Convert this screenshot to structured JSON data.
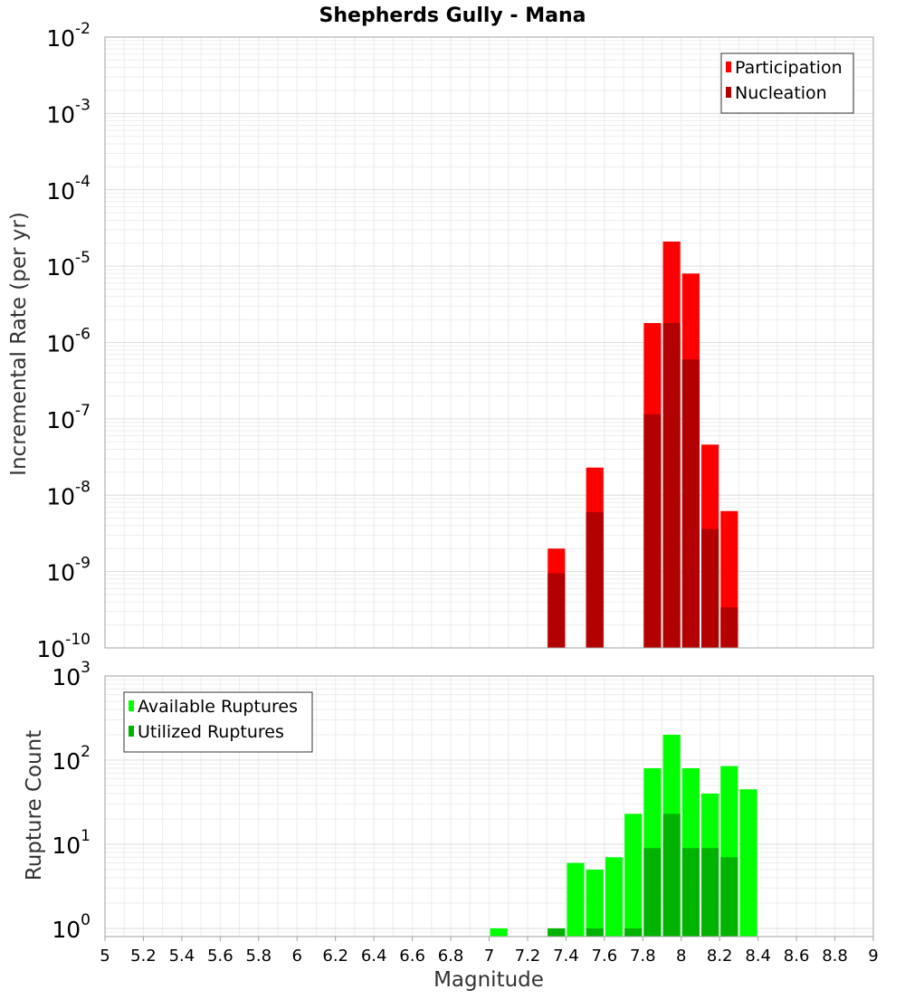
{
  "chart_data": [
    {
      "type": "bar",
      "title": "Shepherds Gully - Mana",
      "xlabel": "Magnitude",
      "ylabel": "Incremental Rate (per yr)",
      "yscale": "log",
      "xlim": [
        5,
        9
      ],
      "ylim": [
        1e-10,
        0.01
      ],
      "y_ticks": [
        {
          "base": "10",
          "exp": "-10",
          "value": 1e-10
        },
        {
          "base": "10",
          "exp": "-9",
          "value": 1e-09
        },
        {
          "base": "10",
          "exp": "-8",
          "value": 1e-08
        },
        {
          "base": "10",
          "exp": "-7",
          "value": 1e-07
        },
        {
          "base": "10",
          "exp": "-6",
          "value": 1e-06
        },
        {
          "base": "10",
          "exp": "-5",
          "value": 1e-05
        },
        {
          "base": "10",
          "exp": "-4",
          "value": 0.0001
        },
        {
          "base": "10",
          "exp": "-3",
          "value": 0.001
        },
        {
          "base": "10",
          "exp": "-2",
          "value": 0.01
        }
      ],
      "legend_position": "top-right",
      "grid": true,
      "series": [
        {
          "name": "Participation",
          "color": "#ff0000",
          "x": [
            7.35,
            7.55,
            7.85,
            7.95,
            8.05,
            8.15,
            8.25
          ],
          "values": [
            2e-09,
            2.3e-08,
            1.8e-06,
            2.1e-05,
            8e-06,
            4.6e-08,
            6.2e-09
          ]
        },
        {
          "name": "Nucleation",
          "color": "#b30000",
          "x": [
            7.35,
            7.55,
            7.85,
            7.95,
            8.05,
            8.15,
            8.25
          ],
          "values": [
            9.5e-10,
            6e-09,
            1.15e-07,
            1.8e-06,
            6e-07,
            3.6e-09,
            3.4e-10
          ]
        }
      ]
    },
    {
      "type": "bar",
      "xlabel": "Magnitude",
      "ylabel": "Rupture Count",
      "yscale": "log",
      "xlim": [
        5,
        9
      ],
      "ylim": [
        0.8,
        1000
      ],
      "x_tick_labels": [
        "5",
        "5.2",
        "5.4",
        "5.6",
        "5.8",
        "6",
        "6.2",
        "6.4",
        "6.6",
        "6.8",
        "7",
        "7.2",
        "7.4",
        "7.6",
        "7.8",
        "8",
        "8.2",
        "8.4",
        "8.6",
        "8.8",
        "9"
      ],
      "y_ticks": [
        {
          "base": "10",
          "exp": "0",
          "value": 1
        },
        {
          "base": "10",
          "exp": "1",
          "value": 10
        },
        {
          "base": "10",
          "exp": "2",
          "value": 100
        },
        {
          "base": "10",
          "exp": "3",
          "value": 1000
        }
      ],
      "legend_position": "top-left",
      "grid": true,
      "series": [
        {
          "name": "Available Ruptures",
          "color": "#00ff00",
          "x": [
            7.05,
            7.35,
            7.45,
            7.55,
            7.65,
            7.75,
            7.85,
            7.95,
            8.05,
            8.15,
            8.25,
            8.35
          ],
          "values": [
            1,
            1,
            6,
            5,
            7,
            23,
            80,
            200,
            80,
            40,
            85,
            45
          ]
        },
        {
          "name": "Utilized Ruptures",
          "color": "#00b300",
          "x": [
            7.35,
            7.55,
            7.75,
            7.85,
            7.95,
            8.05,
            8.15,
            8.25
          ],
          "values": [
            1,
            1,
            1,
            9,
            23,
            9,
            9,
            7
          ]
        }
      ]
    }
  ]
}
